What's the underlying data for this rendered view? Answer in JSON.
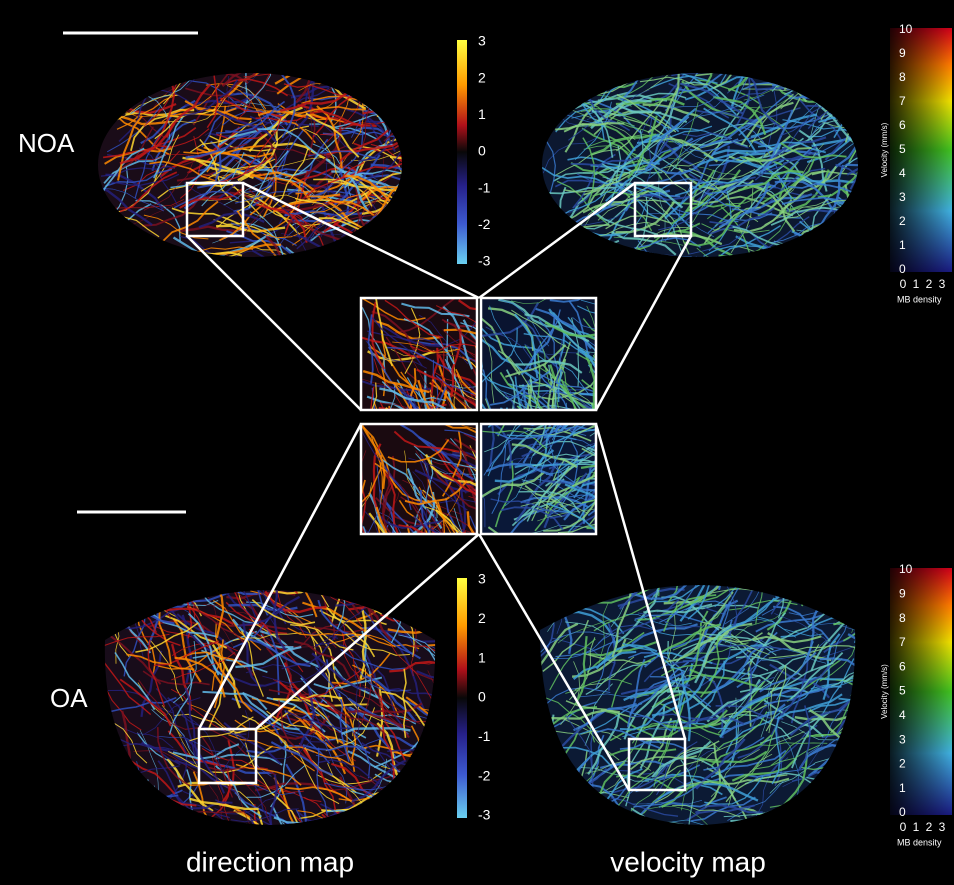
{
  "rows": [
    {
      "label": "NOA"
    },
    {
      "label": "OA"
    }
  ],
  "columns": [
    "direction map",
    "velocity map"
  ],
  "direction_colorbar": {
    "ticks": [
      "3",
      "2",
      "1",
      "0",
      "-1",
      "-2",
      "-3"
    ]
  },
  "velocity_colorbar": {
    "ticks": [
      "10",
      "9",
      "8",
      "7",
      "6",
      "5",
      "4",
      "3",
      "2",
      "1",
      "0"
    ],
    "axis_label": "Velocity (mm/s)",
    "density_ticks": [
      "0",
      "1",
      "2",
      "3"
    ],
    "density_label": "MB density"
  }
}
